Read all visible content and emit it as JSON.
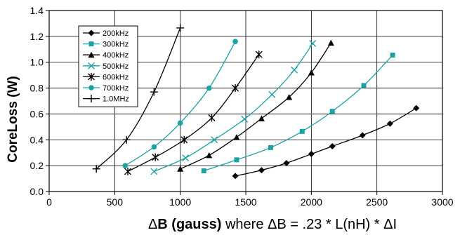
{
  "chart_data": {
    "type": "line",
    "title": "",
    "ylabel": "CoreLoss (W)",
    "xlabel": {
      "delta1": "Δ",
      "bold_part": "B (gauss)",
      "mid_part": " where ",
      "delta2": "Δ",
      "eq_part": "B = .23 * L(nH) * ",
      "delta3": "Δ",
      "end_part": "I"
    },
    "xlim": [
      0,
      3000
    ],
    "ylim": [
      0,
      1.4
    ],
    "x_ticks": [
      "0",
      "500",
      "1000",
      "1500",
      "2000",
      "2500",
      "3000"
    ],
    "y_ticks": [
      "0.0",
      "0.2",
      "0.4",
      "0.6",
      "0.8",
      "1.0",
      "1.2",
      "1.4"
    ],
    "grid": true,
    "legend_position": "top-left",
    "series": [
      {
        "name": "200kHz",
        "color": "#000000",
        "marker": "diamond",
        "points": [
          [
            1420,
            0.12
          ],
          [
            1620,
            0.165
          ],
          [
            1810,
            0.22
          ],
          [
            2000,
            0.29
          ],
          [
            2160,
            0.35
          ],
          [
            2390,
            0.435
          ],
          [
            2600,
            0.525
          ],
          [
            2800,
            0.645
          ]
        ]
      },
      {
        "name": "300kHz",
        "color": "#1aa3a3",
        "marker": "square",
        "points": [
          [
            1180,
            0.16
          ],
          [
            1430,
            0.245
          ],
          [
            1690,
            0.34
          ],
          [
            1930,
            0.465
          ],
          [
            2160,
            0.62
          ],
          [
            2400,
            0.82
          ],
          [
            2620,
            1.055
          ]
        ]
      },
      {
        "name": "400kHz",
        "color": "#000000",
        "marker": "triangle",
        "points": [
          [
            1000,
            0.175
          ],
          [
            1220,
            0.28
          ],
          [
            1430,
            0.42
          ],
          [
            1620,
            0.565
          ],
          [
            1830,
            0.73
          ],
          [
            2000,
            0.92
          ],
          [
            2150,
            1.15
          ]
        ]
      },
      {
        "name": "500kHz",
        "color": "#1aa3a3",
        "marker": "x",
        "points": [
          [
            800,
            0.155
          ],
          [
            1040,
            0.26
          ],
          [
            1260,
            0.4
          ],
          [
            1490,
            0.56
          ],
          [
            1700,
            0.75
          ],
          [
            1870,
            0.94
          ],
          [
            2010,
            1.145
          ]
        ]
      },
      {
        "name": "600kHz",
        "color": "#000000",
        "marker": "star",
        "points": [
          [
            600,
            0.155
          ],
          [
            810,
            0.265
          ],
          [
            1030,
            0.4
          ],
          [
            1240,
            0.57
          ],
          [
            1420,
            0.8
          ],
          [
            1600,
            1.06
          ]
        ]
      },
      {
        "name": "700kHz",
        "color": "#1aa3a3",
        "marker": "circle",
        "points": [
          [
            580,
            0.2
          ],
          [
            800,
            0.345
          ],
          [
            1000,
            0.53
          ],
          [
            1220,
            0.8
          ],
          [
            1420,
            1.16
          ]
        ]
      },
      {
        "name": "1.0MHz",
        "color": "#000000",
        "marker": "plus",
        "points": [
          [
            360,
            0.175
          ],
          [
            590,
            0.4
          ],
          [
            800,
            0.77
          ],
          [
            1000,
            1.265
          ]
        ]
      }
    ]
  }
}
